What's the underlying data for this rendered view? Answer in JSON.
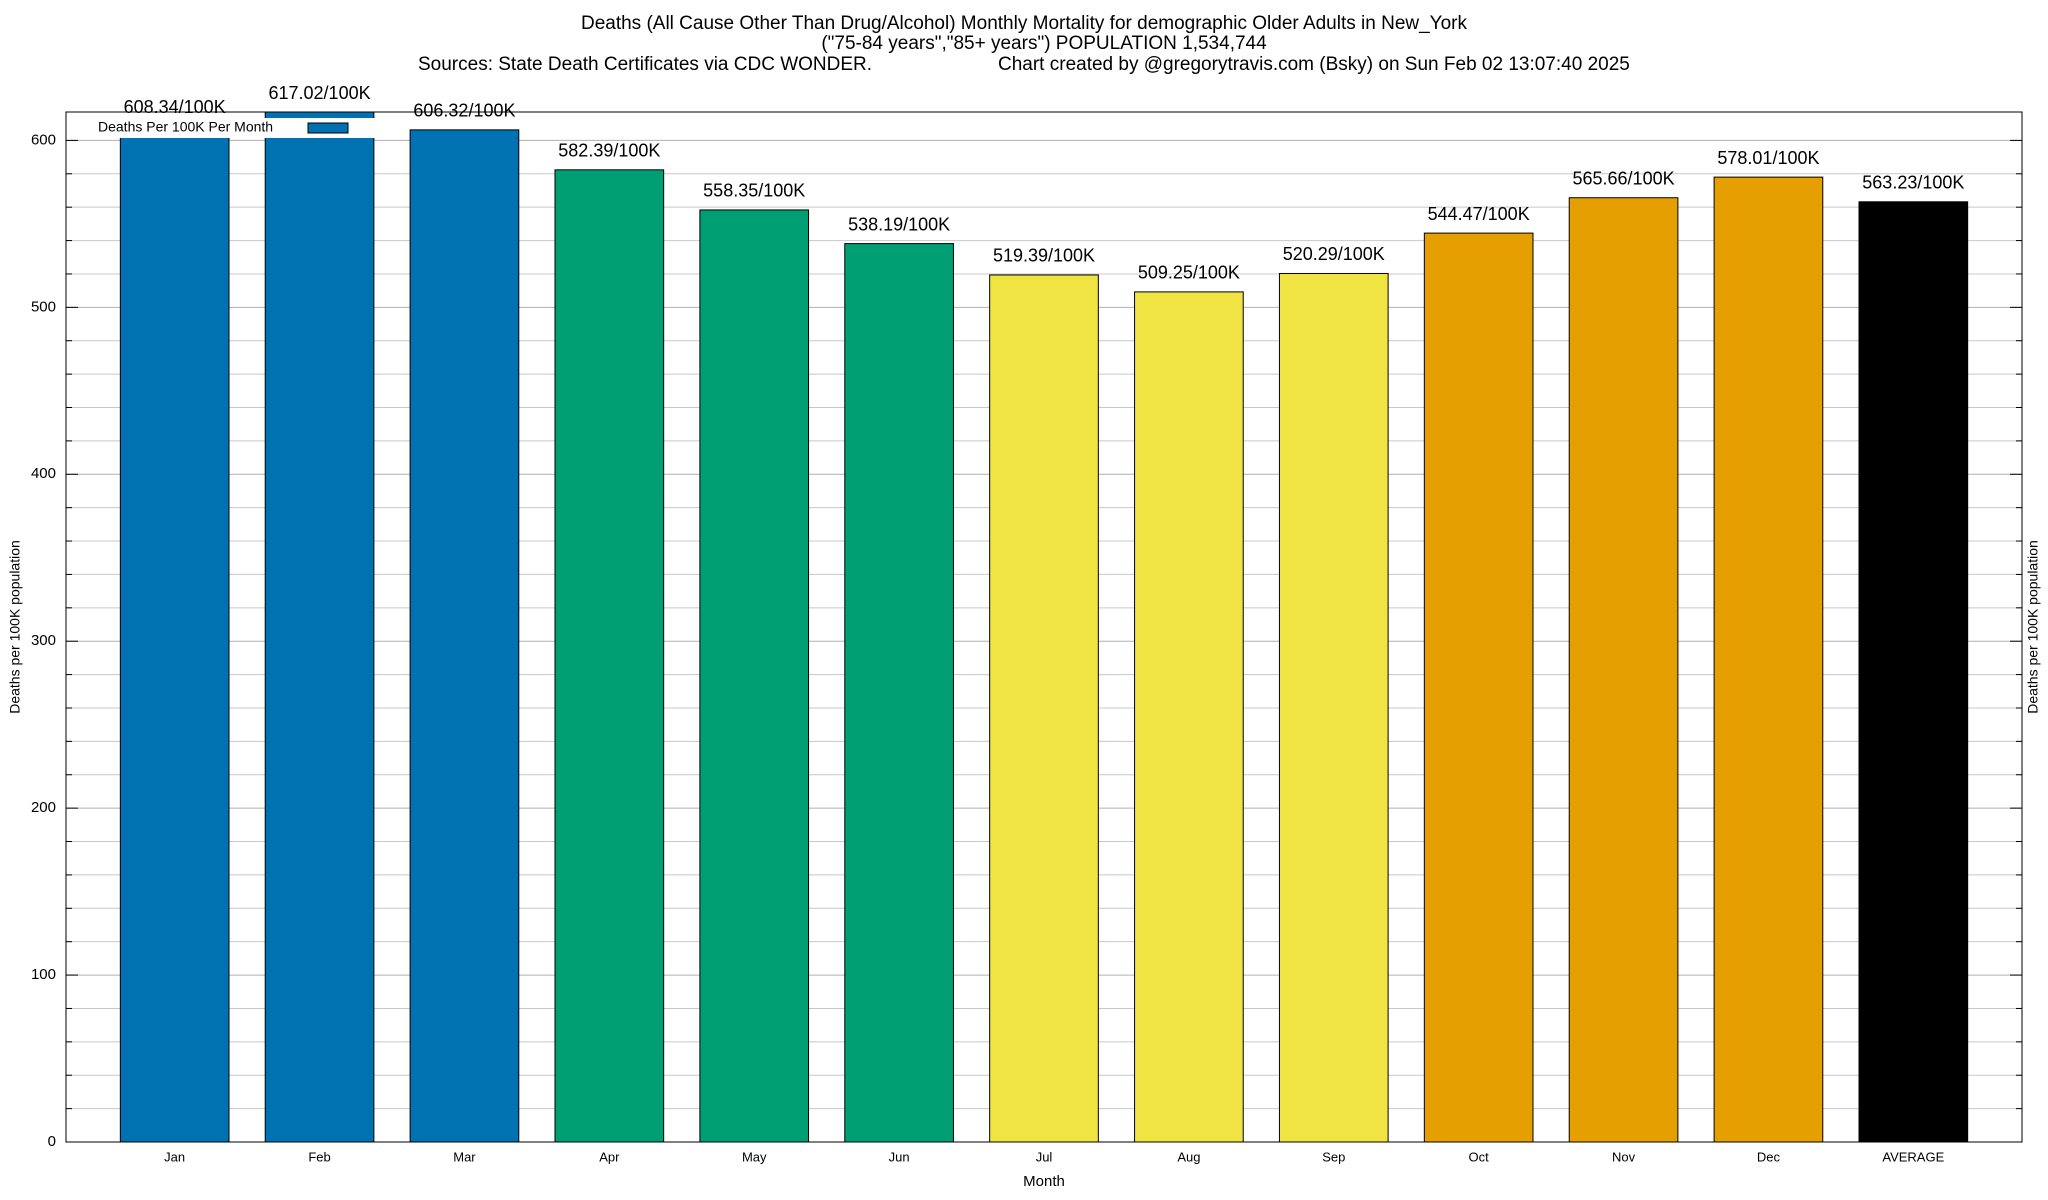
{
  "chart_data": {
    "type": "bar",
    "title": "Deaths (All Cause Other Than Drug/Alcohol) Monthly Mortality for demographic Older Adults in New_York",
    "subtitle": "(\"75-84 years\",\"85+ years\") POPULATION 1,534,744",
    "source": "Sources: State Death Certificates via CDC WONDER.",
    "credit": "Chart created by @gregorytravis.com (Bsky) on Sun Feb 02 13:07:40 2025",
    "x_label": "Month",
    "y_label": "Deaths per 100K population",
    "y2_label": "Deaths per 100K population",
    "categories": [
      "Jan",
      "Feb",
      "Mar",
      "Apr",
      "May",
      "Jun",
      "Jul",
      "Aug",
      "Sep",
      "Oct",
      "Nov",
      "Dec",
      "AVERAGE"
    ],
    "series": [
      {
        "name": "Deaths Per 100K Per Month",
        "color": "#0072b2",
        "colors": [
          "#0072b2",
          "#0072b2",
          "#0072b2",
          "#009e73",
          "#009e73",
          "#009e73",
          "#f0e442",
          "#f0e442",
          "#f0e442",
          "#e69f00",
          "#e69f00",
          "#e69f00",
          "#000000"
        ],
        "values": [
          608.34,
          617.02,
          606.32,
          582.39,
          558.35,
          538.19,
          519.39,
          509.25,
          520.29,
          544.47,
          565.66,
          578.01,
          563.23
        ],
        "value_labels": [
          "608.34/100K",
          "617.02/100K",
          "606.32/100K",
          "582.39/100K",
          "558.35/100K",
          "538.19/100K",
          "519.39/100K",
          "509.25/100K",
          "520.29/100K",
          "544.47/100K",
          "565.66/100K",
          "578.01/100K",
          "563.23/100K"
        ]
      }
    ],
    "ylim": [
      0,
      617.02
    ],
    "yticks": [
      0,
      100,
      200,
      300,
      400,
      500,
      600
    ],
    "yminorticks": [
      20,
      40,
      60,
      80,
      120,
      140,
      160,
      180,
      220,
      240,
      260,
      280,
      320,
      340,
      360,
      380,
      420,
      440,
      460,
      480,
      520,
      540,
      560,
      580
    ],
    "grid": true,
    "legend": "top-left"
  }
}
